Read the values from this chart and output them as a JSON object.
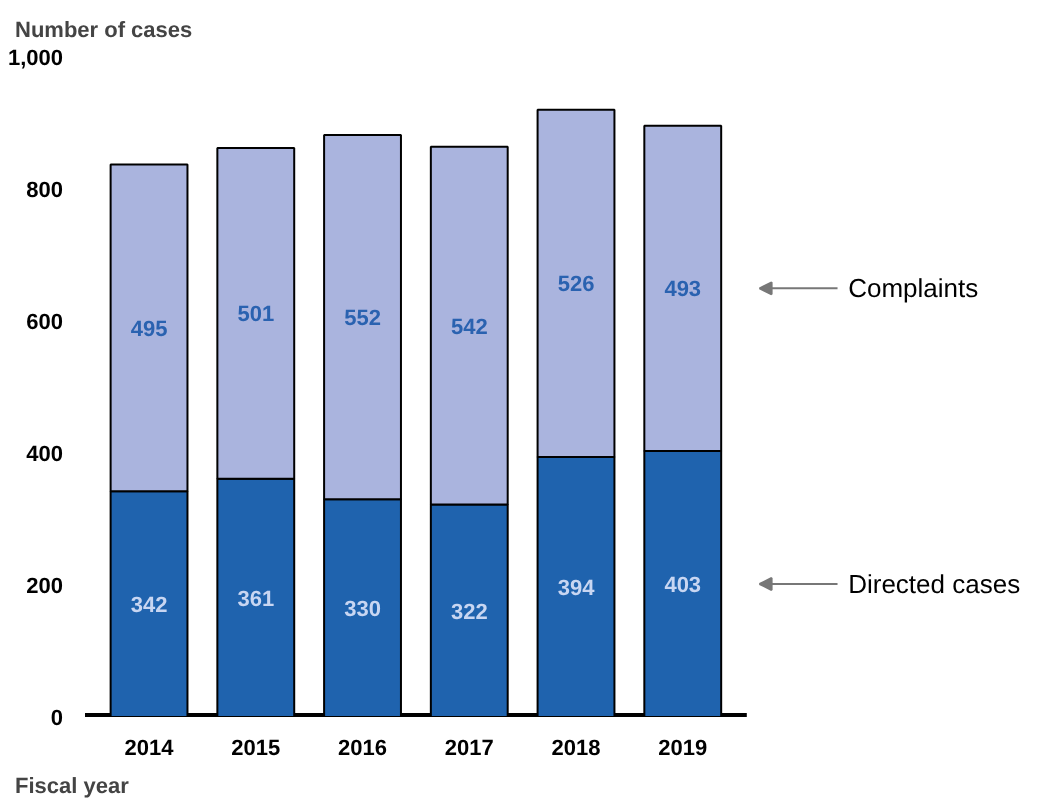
{
  "chart_data": {
    "type": "bar",
    "stacked": true,
    "ylabel": "Number of cases",
    "xlabel": "Fiscal year",
    "categories": [
      "2014",
      "2015",
      "2016",
      "2017",
      "2018",
      "2019"
    ],
    "series": [
      {
        "name": "Directed cases",
        "color": "#1f63ae",
        "values": [
          342,
          361,
          330,
          322,
          394,
          403
        ]
      },
      {
        "name": "Complaints",
        "color": "#aab4de",
        "values": [
          495,
          501,
          552,
          542,
          526,
          493
        ]
      }
    ],
    "ylim": [
      0,
      1000
    ],
    "yticks": [
      0,
      200,
      400,
      600,
      800,
      {
        "value": 1000,
        "label": "1,000"
      }
    ],
    "grid": false,
    "data_labels": true
  }
}
